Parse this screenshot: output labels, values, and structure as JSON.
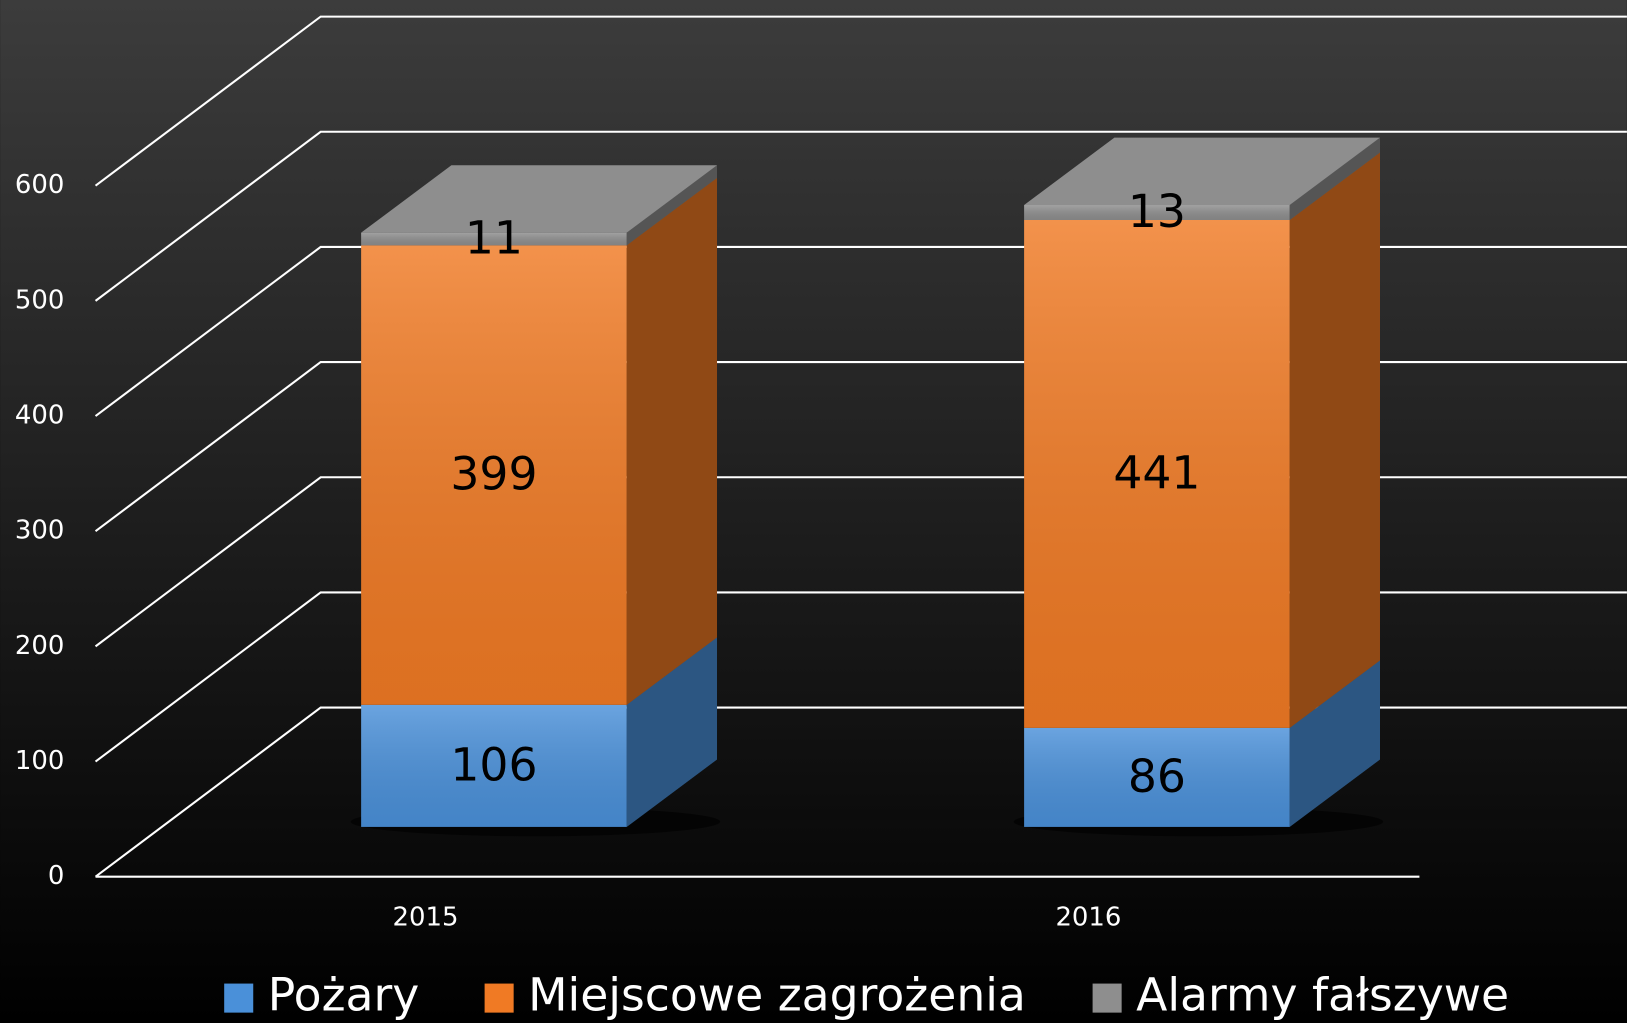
{
  "chart_data": {
    "type": "bar3d_stacked",
    "categories": [
      "2015",
      "2016"
    ],
    "series": [
      {
        "name": "Pożary",
        "color": "#4a90d9",
        "values": [
          106,
          86
        ]
      },
      {
        "name": "Miejscowe zagrożenia",
        "color": "#f07a24",
        "values": [
          399,
          441
        ]
      },
      {
        "name": "Alarmy fałszywe",
        "color": "#8e8e8e",
        "values": [
          11,
          13
        ]
      }
    ],
    "ylim": [
      0,
      600
    ],
    "yticks": [
      0,
      100,
      200,
      300,
      400,
      500,
      600
    ],
    "grid": true,
    "legend": "bottom"
  }
}
